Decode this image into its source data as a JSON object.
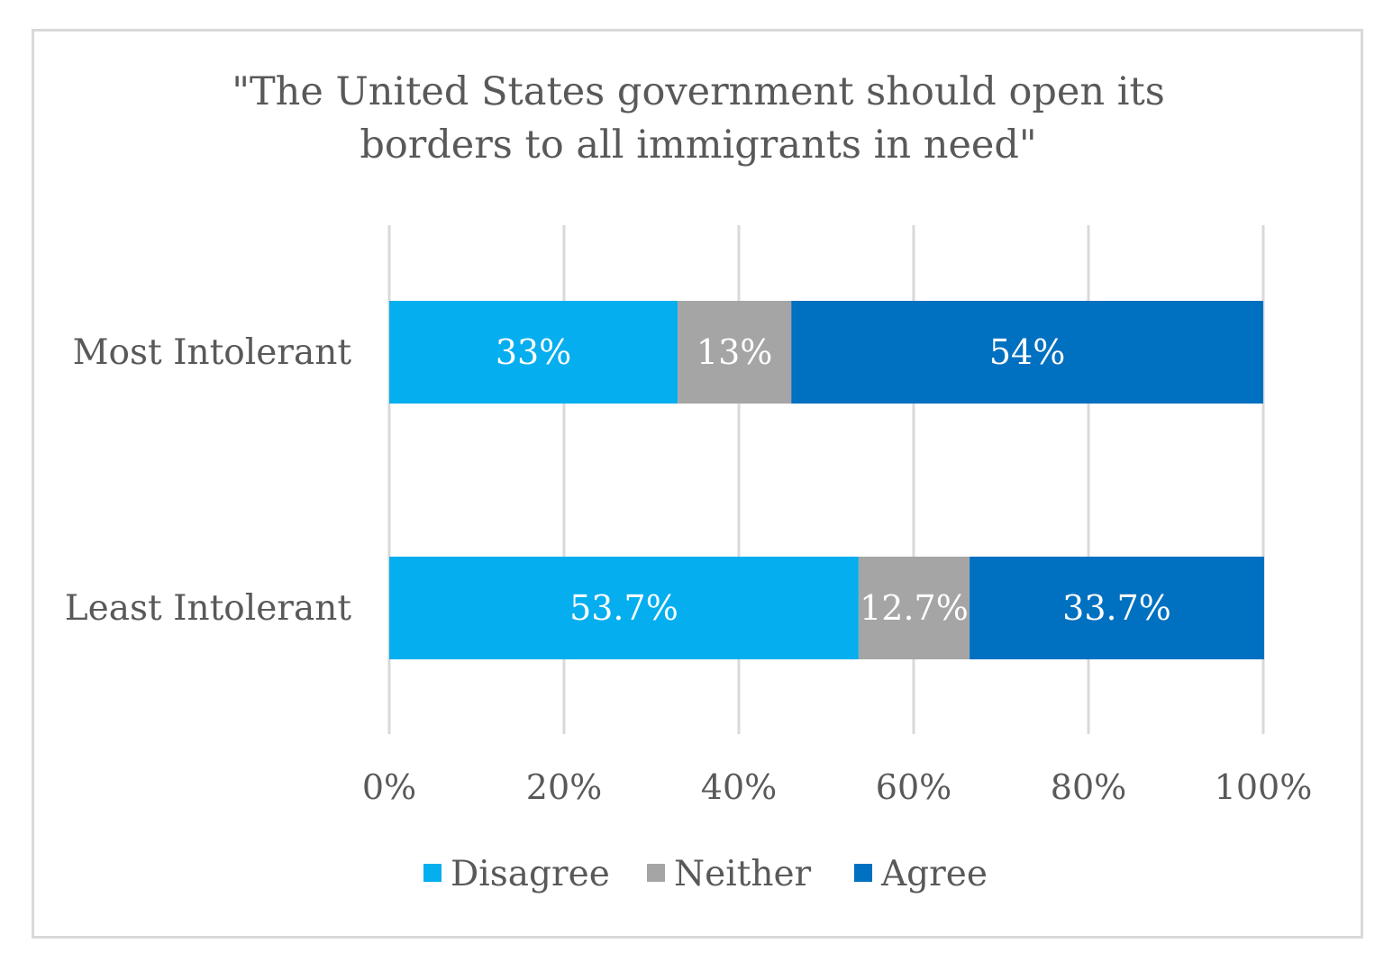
{
  "chart_data": {
    "type": "bar",
    "orientation": "horizontal",
    "stacked": "100%",
    "title_lines": [
      "\"The United States government should open its",
      "borders to all immigrants in need\""
    ],
    "categories": [
      "Most Intolerant",
      "Least Intolerant"
    ],
    "series": [
      {
        "name": "Disagree",
        "color": "#05aeee",
        "values": [
          33,
          53.7
        ],
        "labels": [
          "33%",
          "53.7%"
        ]
      },
      {
        "name": "Neither",
        "color": "#a5a5a5",
        "values": [
          13,
          12.7
        ],
        "labels": [
          "13%",
          "12.7%"
        ]
      },
      {
        "name": "Agree",
        "color": "#0070c0",
        "values": [
          54,
          33.7
        ],
        "labels": [
          "54%",
          "33.7%"
        ]
      }
    ],
    "xlim": [
      0,
      100
    ],
    "x_ticks": [
      0,
      20,
      40,
      60,
      80,
      100
    ],
    "x_tick_labels": [
      "0%",
      "20%",
      "40%",
      "60%",
      "80%",
      "100%"
    ],
    "grid": true,
    "gridline_color": "#d9d9d9",
    "legend_position": "bottom"
  }
}
